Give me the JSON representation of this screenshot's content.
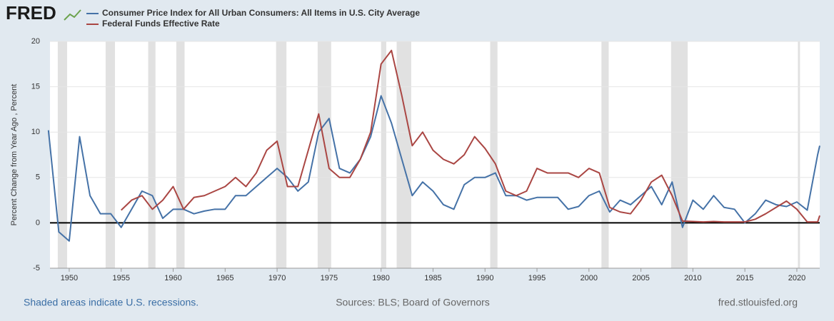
{
  "logo": "FRED",
  "chart_data": {
    "type": "line",
    "ylabel": "Percent Change from Year Ago , Percent",
    "note": "Shaded areas indicate U.S. recessions.",
    "source": "Sources: BLS; Board of Governors",
    "site": "fred.stlouisfed.org",
    "x": [
      1948,
      1949,
      1950,
      1951,
      1952,
      1953,
      1954,
      1955,
      1956,
      1957,
      1958,
      1959,
      1960,
      1961,
      1962,
      1963,
      1964,
      1965,
      1966,
      1967,
      1968,
      1969,
      1970,
      1971,
      1972,
      1973,
      1974,
      1975,
      1976,
      1977,
      1978,
      1979,
      1980,
      1981,
      1982,
      1983,
      1984,
      1985,
      1986,
      1987,
      1988,
      1989,
      1990,
      1991,
      1992,
      1993,
      1994,
      1995,
      1996,
      1997,
      1998,
      1999,
      2000,
      2001,
      2002,
      2003,
      2004,
      2005,
      2006,
      2007,
      2008,
      2009,
      2010,
      2011,
      2012,
      2013,
      2014,
      2015,
      2016,
      2017,
      2018,
      2019,
      2020,
      2021,
      2022,
      2022.2
    ],
    "series": [
      {
        "name": "Consumer Price Index for All Urban Consumers: All Items in U.S. City Average",
        "color": "#4572a7",
        "values": [
          10.2,
          -1,
          -2,
          9.5,
          3,
          1,
          1,
          -0.5,
          1.5,
          3.5,
          3,
          0.5,
          1.5,
          1.5,
          1,
          1.3,
          1.5,
          1.5,
          3,
          3,
          4,
          5,
          6,
          5,
          3.5,
          4.5,
          10,
          11.5,
          6,
          5.5,
          7,
          9.5,
          14,
          11,
          7,
          3,
          4.5,
          3.5,
          2,
          1.5,
          4.2,
          5,
          5,
          5.5,
          3,
          3,
          2.5,
          2.8,
          2.8,
          2.8,
          1.5,
          1.8,
          3,
          3.5,
          1.2,
          2.5,
          2,
          3,
          4,
          2,
          4.5,
          -0.5,
          2.5,
          1.5,
          3,
          1.7,
          1.5,
          0,
          1,
          2.5,
          2,
          1.8,
          2.3,
          1.4,
          7.5,
          8.5
        ]
      },
      {
        "name": "Federal Funds Effective Rate",
        "color": "#aa4643",
        "values": [
          null,
          null,
          null,
          null,
          null,
          null,
          null,
          1.4,
          2.5,
          3,
          1.5,
          2.5,
          4,
          1.5,
          2.8,
          3,
          3.5,
          4,
          5,
          4,
          5.5,
          8,
          9,
          4,
          4,
          8,
          12,
          6,
          5,
          5,
          7,
          10,
          17.5,
          19,
          14,
          8.5,
          10,
          8,
          7,
          6.5,
          7.5,
          9.5,
          8.2,
          6.5,
          3.5,
          3,
          3.5,
          6,
          5.5,
          5.5,
          5.5,
          5,
          6,
          5.5,
          1.7,
          1.2,
          1,
          2.5,
          4.5,
          5.25,
          3,
          0.2,
          0.15,
          0.1,
          0.15,
          0.1,
          0.1,
          0.1,
          0.4,
          1,
          1.7,
          2.4,
          1.5,
          0.1,
          0.1,
          0.8
        ]
      }
    ],
    "recessions": [
      [
        1948.9,
        1949.8
      ],
      [
        1953.5,
        1954.4
      ],
      [
        1957.6,
        1958.3
      ],
      [
        1960.3,
        1961.1
      ],
      [
        1969.9,
        1970.9
      ],
      [
        1973.9,
        1975.2
      ],
      [
        1980.0,
        1980.5
      ],
      [
        1981.5,
        1982.9
      ],
      [
        1990.5,
        1991.2
      ],
      [
        2001.2,
        2001.9
      ],
      [
        2007.9,
        2009.5
      ],
      [
        2020.1,
        2020.3
      ]
    ],
    "recession_color": "#e1e1e1",
    "xlim": [
      1948.15,
      2022.2
    ],
    "xticks": [
      1950,
      1955,
      1960,
      1965,
      1970,
      1975,
      1980,
      1985,
      1990,
      1995,
      2000,
      2005,
      2010,
      2015,
      2020
    ],
    "ylim": [
      -5,
      20
    ],
    "yticks": [
      -5,
      0,
      5,
      10,
      15,
      20
    ],
    "grid": true
  }
}
